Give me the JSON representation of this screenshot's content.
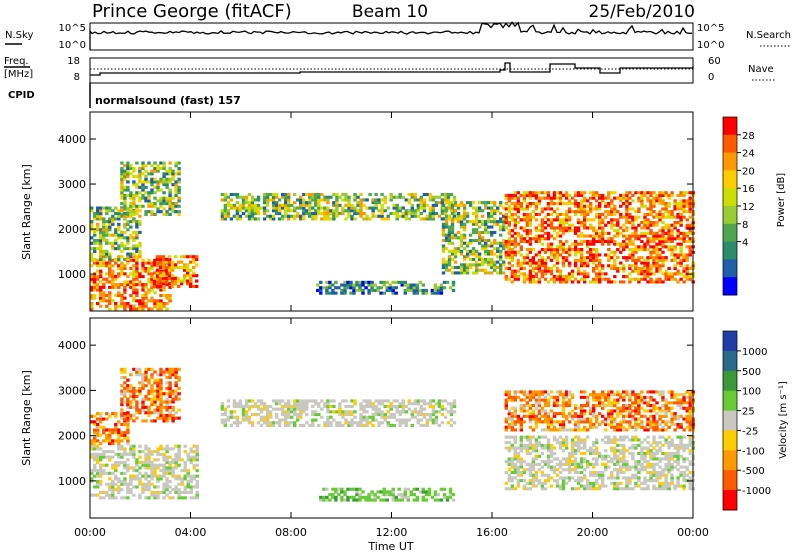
{
  "header": {
    "station": "Prince George (fitACF)",
    "beam": "Beam 10",
    "date": "25/Feb/2010"
  },
  "strips": {
    "nsky_label": "N.Sky",
    "nsky_ticks": [
      "10^5",
      "10^0"
    ],
    "nsearch_ticks": [
      "10^5",
      "10^0"
    ],
    "nsearch_label": "N.Search",
    "freq_label": "Freq.",
    "freq_unit": "[MHz]",
    "freq_ticks": [
      "18",
      "8"
    ],
    "nave_ticks": [
      "60",
      "0"
    ],
    "nave_label": "Nave",
    "cpid_label": "CPID",
    "cpid_text": "normalsound (fast) 157"
  },
  "chart_data": [
    {
      "type": "heatmap",
      "title": "Power",
      "ylabel": "Slant Range [km]",
      "xlabel": "Time UT",
      "x_ticks": [
        "00:00",
        "04:00",
        "08:00",
        "12:00",
        "16:00",
        "20:00",
        "00:00"
      ],
      "y_ticks": [
        "1000",
        "2000",
        "3000",
        "4000"
      ],
      "xlim_hours": [
        0,
        24
      ],
      "ylim_km": [
        180,
        4600
      ],
      "colorbar": {
        "label": "Power [dB]",
        "ticks": [
          "28",
          "24",
          "20",
          "16",
          "12",
          "8",
          "4"
        ],
        "colors": [
          "#ff0000",
          "#ff5a00",
          "#ff9900",
          "#ffcc00",
          "#ccdd00",
          "#99cc33",
          "#4fa64f",
          "#2a8c6a",
          "#1f5fa8",
          "#0000ff"
        ]
      },
      "echo_regions": [
        {
          "t0": 0.0,
          "t1": 3.2,
          "r0": 200,
          "r1": 1300,
          "level": "strong"
        },
        {
          "t0": 0.0,
          "t1": 2.0,
          "r0": 1300,
          "r1": 2500,
          "level": "medium"
        },
        {
          "t0": 1.2,
          "t1": 3.5,
          "r0": 2300,
          "r1": 3500,
          "level": "medium"
        },
        {
          "t0": 2.5,
          "t1": 4.3,
          "r0": 700,
          "r1": 1400,
          "level": "strong"
        },
        {
          "t0": 5.2,
          "t1": 14.5,
          "r0": 2200,
          "r1": 2800,
          "level": "medium"
        },
        {
          "t0": 9.0,
          "t1": 14.5,
          "r0": 550,
          "r1": 800,
          "level": "weak"
        },
        {
          "t0": 14.0,
          "t1": 16.5,
          "r0": 1000,
          "r1": 2600,
          "level": "medium"
        },
        {
          "t0": 16.5,
          "t1": 24.0,
          "r0": 800,
          "r1": 2800,
          "level": "strong"
        }
      ]
    },
    {
      "type": "heatmap",
      "title": "Velocity",
      "ylabel": "Slant Range [km]",
      "xlabel": "Time UT",
      "x_ticks": [
        "00:00",
        "04:00",
        "08:00",
        "12:00",
        "16:00",
        "20:00",
        "00:00"
      ],
      "y_ticks": [
        "1000",
        "2000",
        "3000",
        "4000"
      ],
      "xlim_hours": [
        0,
        24
      ],
      "ylim_km": [
        180,
        4600
      ],
      "colorbar": {
        "label": "Velocity [m s⁻¹]",
        "ticks": [
          "1000",
          "500",
          "100",
          "25",
          "-25",
          "-100",
          "-500",
          "-1000"
        ],
        "colors": [
          "#1f3fa8",
          "#2a6a8c",
          "#3a9a3a",
          "#66cc33",
          "#c8c8c0",
          "#ffcc00",
          "#ff9900",
          "#ff5a00",
          "#ff0000"
        ]
      },
      "echo_regions": [
        {
          "t0": 0.0,
          "t1": 4.3,
          "r0": 600,
          "r1": 1800,
          "level": "ground"
        },
        {
          "t0": 1.2,
          "t1": 3.5,
          "r0": 2300,
          "r1": 3500,
          "level": "away"
        },
        {
          "t0": 0.0,
          "t1": 1.5,
          "r0": 1800,
          "r1": 2500,
          "level": "away"
        },
        {
          "t0": 5.2,
          "t1": 14.5,
          "r0": 2200,
          "r1": 2800,
          "level": "ground"
        },
        {
          "t0": 9.0,
          "t1": 14.5,
          "r0": 550,
          "r1": 800,
          "level": "toward"
        },
        {
          "t0": 16.5,
          "t1": 24.0,
          "r0": 2100,
          "r1": 3000,
          "level": "away"
        },
        {
          "t0": 16.5,
          "t1": 24.0,
          "r0": 800,
          "r1": 2000,
          "level": "ground"
        }
      ]
    }
  ]
}
